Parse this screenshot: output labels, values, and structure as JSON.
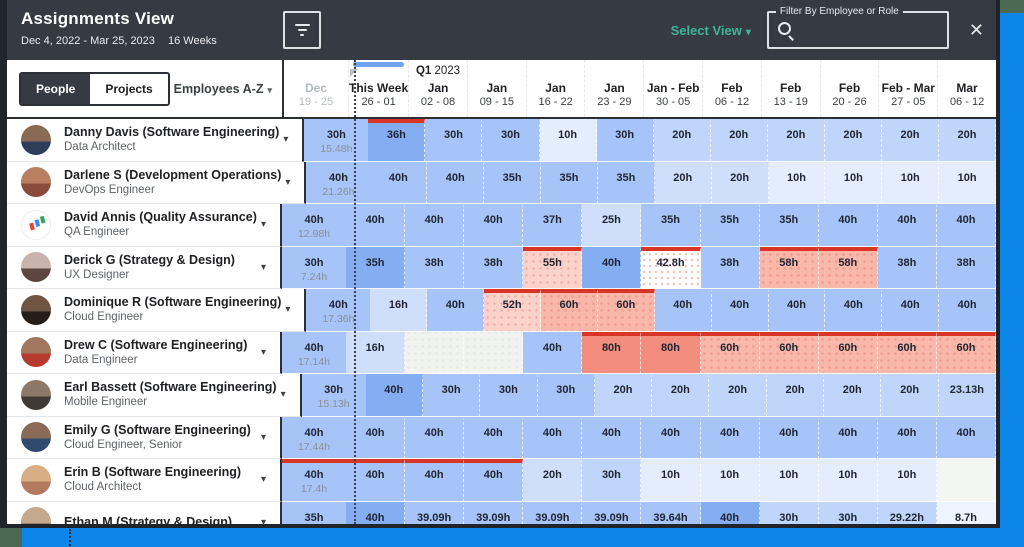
{
  "header": {
    "title": "Assignments View",
    "date_range": "Dec 4, 2022 - Mar 25, 2023",
    "weeks": "16 Weeks",
    "select_view_label": "Select View",
    "filter_label": "Filter By Employee or Role",
    "search_value": "",
    "accent_teal": "#3eb49b",
    "header_bg": "#363a43"
  },
  "icons": {
    "chevron_down": "▾",
    "close": "✕"
  },
  "toolbar": {
    "people_label": "People",
    "projects_label": "Projects",
    "sort_label": "Employees A-Z"
  },
  "timeline": {
    "quarter": "Q1",
    "year": "2023",
    "columns": [
      {
        "month": "Dec",
        "days": "19 - 25",
        "past": true
      },
      {
        "month": "This Week",
        "days": "26 - 01",
        "current": true
      },
      {
        "month": "Jan",
        "days": "02 - 08"
      },
      {
        "month": "Jan",
        "days": "09 - 15"
      },
      {
        "month": "Jan",
        "days": "16 - 22"
      },
      {
        "month": "Jan",
        "days": "23 - 29"
      },
      {
        "month": "Jan - Feb",
        "days": "30 - 05"
      },
      {
        "month": "Feb",
        "days": "06 - 12"
      },
      {
        "month": "Feb",
        "days": "13 - 19"
      },
      {
        "month": "Feb",
        "days": "20 - 26"
      },
      {
        "month": "Feb - Mar",
        "days": "27 - 05"
      },
      {
        "month": "Mar",
        "days": "06 - 12"
      }
    ]
  },
  "colors": {
    "overallocation_border": "#d93527",
    "cell_blue_dark": "#85adf2",
    "cell_blue_mid": "#a6c4f7",
    "cell_blue_light": "#e4edfd",
    "cell_pink_light": "#fbd2c9",
    "cell_salmon": "#f8b7a9",
    "cell_salmon_strong": "#f38d7d"
  },
  "rows": [
    {
      "name": "Danny Davis (Software Engineering)",
      "role": "Data Architect",
      "avatar": {
        "c1": "#8a6a55",
        "c2": "#2e3e5a"
      },
      "dec": {
        "v": "30h",
        "c": "15.48h"
      },
      "cells": [
        {
          "v": "36h",
          "t": "b1",
          "over": true
        },
        {
          "v": "30h",
          "t": "b2"
        },
        {
          "v": "30h",
          "t": "b2"
        },
        {
          "v": "10h",
          "t": "b5"
        },
        {
          "v": "30h",
          "t": "b2"
        },
        {
          "v": "20h",
          "t": "b3"
        },
        {
          "v": "20h",
          "t": "b3"
        },
        {
          "v": "20h",
          "t": "b3"
        },
        {
          "v": "20h",
          "t": "b3"
        },
        {
          "v": "20h",
          "t": "b3"
        },
        {
          "v": "20h",
          "t": "b3"
        }
      ]
    },
    {
      "name": "Darlene S (Development Operations)",
      "role": "DevOps Engineer",
      "avatar": {
        "c1": "#b97f62",
        "c2": "#8a4a3c"
      },
      "dec": {
        "v": "40h",
        "c": "21.26h"
      },
      "cells": [
        {
          "v": "40h",
          "t": "b2"
        },
        {
          "v": "40h",
          "t": "b2"
        },
        {
          "v": "35h",
          "t": "b2"
        },
        {
          "v": "35h",
          "t": "b2"
        },
        {
          "v": "35h",
          "t": "b2"
        },
        {
          "v": "20h",
          "t": "b4"
        },
        {
          "v": "20h",
          "t": "b4"
        },
        {
          "v": "10h",
          "t": "b5"
        },
        {
          "v": "10h",
          "t": "b5"
        },
        {
          "v": "10h",
          "t": "b5"
        },
        {
          "v": "10h",
          "t": "b5"
        }
      ]
    },
    {
      "name": "David Annis (Quality Assurance)",
      "role": "QA Engineer",
      "avatar": {
        "logo": true
      },
      "dec": {
        "v": "40h",
        "c": "12.98h"
      },
      "cells": [
        {
          "v": "40h",
          "t": "b2"
        },
        {
          "v": "40h",
          "t": "b2"
        },
        {
          "v": "40h",
          "t": "b2"
        },
        {
          "v": "37h",
          "t": "b2"
        },
        {
          "v": "25h",
          "t": "b4"
        },
        {
          "v": "35h",
          "t": "b2"
        },
        {
          "v": "35h",
          "t": "b2"
        },
        {
          "v": "35h",
          "t": "b2"
        },
        {
          "v": "40h",
          "t": "b2"
        },
        {
          "v": "40h",
          "t": "b2"
        },
        {
          "v": "40h",
          "t": "b2"
        }
      ]
    },
    {
      "name": "Derick G (Strategy & Design)",
      "role": "UX Designer",
      "avatar": {
        "c1": "#c9b4ad",
        "c2": "#5d4640"
      },
      "dec": {
        "v": "30h",
        "c": "7.24h"
      },
      "cells": [
        {
          "v": "35h",
          "t": "b1"
        },
        {
          "v": "38h",
          "t": "b2"
        },
        {
          "v": "38h",
          "t": "b2"
        },
        {
          "v": "55h",
          "t": "p1",
          "over": true,
          "dots": true
        },
        {
          "v": "40h",
          "t": "b1"
        },
        {
          "v": "42.8h",
          "t": "wd",
          "over": true
        },
        {
          "v": "38h",
          "t": "b2"
        },
        {
          "v": "58h",
          "t": "p2",
          "over": true,
          "dots": true
        },
        {
          "v": "58h",
          "t": "p2",
          "over": true,
          "dots": true
        },
        {
          "v": "38h",
          "t": "b2"
        },
        {
          "v": "38h",
          "t": "b2"
        }
      ]
    },
    {
      "name": "Dominique R (Software Engineering)",
      "role": "Cloud Engineer",
      "avatar": {
        "c1": "#6e5544",
        "c2": "#241d18"
      },
      "dec": {
        "v": "40h",
        "c": "17.36h"
      },
      "cells": [
        {
          "v": "16h",
          "t": "b4"
        },
        {
          "v": "40h",
          "t": "b2"
        },
        {
          "v": "52h",
          "t": "p1",
          "over": true,
          "dots": true
        },
        {
          "v": "60h",
          "t": "p2",
          "over": true,
          "dots": true
        },
        {
          "v": "60h",
          "t": "p2",
          "over": true,
          "dots": true
        },
        {
          "v": "40h",
          "t": "b2"
        },
        {
          "v": "40h",
          "t": "b2"
        },
        {
          "v": "40h",
          "t": "b2"
        },
        {
          "v": "40h",
          "t": "b2"
        },
        {
          "v": "40h",
          "t": "b2"
        },
        {
          "v": "40h",
          "t": "b2"
        }
      ]
    },
    {
      "name": "Drew C (Software Engineering)",
      "role": "Data Engineer",
      "avatar": {
        "c1": "#a2775f",
        "c2": "#b63b2e"
      },
      "dec": {
        "v": "40h",
        "c": "17.14h"
      },
      "cells": [
        {
          "v": "16h",
          "t": "b4"
        },
        {
          "v": "",
          "t": "e1"
        },
        {
          "v": "",
          "t": "e1"
        },
        {
          "v": "40h",
          "t": "b2"
        },
        {
          "v": "80h",
          "t": "p3",
          "over": true
        },
        {
          "v": "80h",
          "t": "p3",
          "over": true
        },
        {
          "v": "60h",
          "t": "p2",
          "over": true,
          "dots": true
        },
        {
          "v": "60h",
          "t": "p2",
          "over": true,
          "dots": true
        },
        {
          "v": "60h",
          "t": "p2",
          "over": true,
          "dots": true
        },
        {
          "v": "60h",
          "t": "p2",
          "over": true,
          "dots": true
        },
        {
          "v": "60h",
          "t": "p2",
          "over": true,
          "dots": true
        }
      ]
    },
    {
      "name": "Earl Bassett (Software Engineering)",
      "role": "Mobile Engineer",
      "avatar": {
        "c1": "#8d7867",
        "c2": "#3f3a36"
      },
      "dec": {
        "v": "30h",
        "c": "15.13h"
      },
      "cells": [
        {
          "v": "40h",
          "t": "b1"
        },
        {
          "v": "30h",
          "t": "b2"
        },
        {
          "v": "30h",
          "t": "b2"
        },
        {
          "v": "30h",
          "t": "b2"
        },
        {
          "v": "20h",
          "t": "b3"
        },
        {
          "v": "20h",
          "t": "b3"
        },
        {
          "v": "20h",
          "t": "b3"
        },
        {
          "v": "20h",
          "t": "b3"
        },
        {
          "v": "20h",
          "t": "b3"
        },
        {
          "v": "20h",
          "t": "b3"
        },
        {
          "v": "23.13h",
          "t": "b3"
        }
      ]
    },
    {
      "name": "Emily G (Software Engineering)",
      "role": "Cloud Engineer, Senior",
      "avatar": {
        "c1": "#8a6b57",
        "c2": "#2f4a6e"
      },
      "dec": {
        "v": "40h",
        "c": "17.44h"
      },
      "cells": [
        {
          "v": "40h",
          "t": "b2"
        },
        {
          "v": "40h",
          "t": "b2"
        },
        {
          "v": "40h",
          "t": "b2"
        },
        {
          "v": "40h",
          "t": "b2"
        },
        {
          "v": "40h",
          "t": "b2"
        },
        {
          "v": "40h",
          "t": "b2"
        },
        {
          "v": "40h",
          "t": "b2"
        },
        {
          "v": "40h",
          "t": "b2"
        },
        {
          "v": "40h",
          "t": "b2"
        },
        {
          "v": "40h",
          "t": "b2"
        },
        {
          "v": "40h",
          "t": "b2"
        }
      ]
    },
    {
      "name": "Erin B (Software Engineering)",
      "role": "Cloud Architect",
      "avatar": {
        "c1": "#d8ae84",
        "c2": "#b27a5e"
      },
      "dec": {
        "v": "40h",
        "c": "17.4h",
        "over": true
      },
      "cells": [
        {
          "v": "40h",
          "t": "b2",
          "over": true
        },
        {
          "v": "40h",
          "t": "b2",
          "over": true
        },
        {
          "v": "40h",
          "t": "b2",
          "over": true
        },
        {
          "v": "20h",
          "t": "b4"
        },
        {
          "v": "30h",
          "t": "b3"
        },
        {
          "v": "10h",
          "t": "b5"
        },
        {
          "v": "10h",
          "t": "b5"
        },
        {
          "v": "10h",
          "t": "b5"
        },
        {
          "v": "10h",
          "t": "b5"
        },
        {
          "v": "10h",
          "t": "b5"
        },
        {
          "v": "",
          "t": "e2"
        }
      ]
    },
    {
      "name": "Ethan M (Strategy & Design)",
      "role": "",
      "avatar": {
        "c1": "#c5a88e",
        "c2": "#6b5a4c"
      },
      "dec": {
        "v": "35h",
        "c": ""
      },
      "cells": [
        {
          "v": "40h",
          "t": "b1"
        },
        {
          "v": "39.09h",
          "t": "b2"
        },
        {
          "v": "39.09h",
          "t": "b2"
        },
        {
          "v": "39.09h",
          "t": "b2"
        },
        {
          "v": "39.09h",
          "t": "b2"
        },
        {
          "v": "39.64h",
          "t": "b2"
        },
        {
          "v": "40h",
          "t": "b1"
        },
        {
          "v": "30h",
          "t": "b3"
        },
        {
          "v": "30h",
          "t": "b3"
        },
        {
          "v": "29.22h",
          "t": "b3"
        },
        {
          "v": "8.7h",
          "t": "b6"
        }
      ]
    }
  ]
}
